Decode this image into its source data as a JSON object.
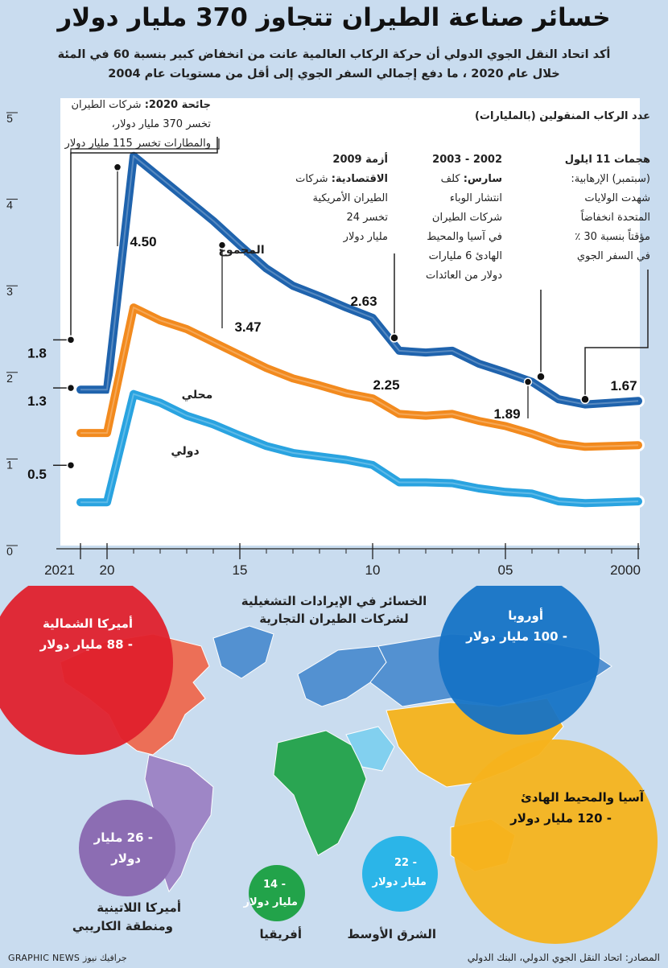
{
  "header": {
    "title": "خسائر صناعة الطيران تتجاوز 370 مليار دولار",
    "subtitle_line1": "أكد اتحاد النقل الجوي الدولي أن حركة الركاب العالمية عانت من انخفاض كبير بنسبة 60 في المئة",
    "subtitle_line2": "خلال عام 2020 ، ما دفع إجمالي السفر الجوي إلى أقل من مستويات عام 2004"
  },
  "chart_data": {
    "type": "line",
    "ylabel": "عدد الركاب المنقولين (بالمليارات)",
    "ylim": [
      0,
      5
    ],
    "yticks": [
      "0",
      "1",
      "2",
      "3",
      "4",
      "5"
    ],
    "x": [
      2000,
      2001,
      2002,
      2003,
      2004,
      2005,
      2006,
      2007,
      2008,
      2009,
      2010,
      2011,
      2012,
      2013,
      2014,
      2015,
      2016,
      2017,
      2018,
      2019,
      2020,
      2021
    ],
    "xticks": [
      {
        "value": 2000,
        "label": "2000"
      },
      {
        "value": 2005,
        "label": "05"
      },
      {
        "value": 2010,
        "label": "10"
      },
      {
        "value": 2015,
        "label": "15"
      },
      {
        "value": 2020,
        "label": "20"
      },
      {
        "value": 2021,
        "label": "2021"
      }
    ],
    "series": [
      {
        "name": "المجموع",
        "color": "#1f63ad",
        "values": [
          1.67,
          1.65,
          1.63,
          1.69,
          1.89,
          2.0,
          2.1,
          2.25,
          2.23,
          2.25,
          2.63,
          2.75,
          2.88,
          3.0,
          3.2,
          3.47,
          3.75,
          4.0,
          4.25,
          4.5,
          1.8,
          1.8
        ]
      },
      {
        "name": "محلي",
        "color": "#f28a1e",
        "values": [
          1.16,
          1.15,
          1.14,
          1.18,
          1.29,
          1.38,
          1.44,
          1.52,
          1.5,
          1.52,
          1.7,
          1.76,
          1.85,
          1.93,
          2.05,
          2.2,
          2.35,
          2.5,
          2.6,
          2.75,
          1.3,
          1.3
        ]
      },
      {
        "name": "دولي",
        "color": "#29a3e0",
        "values": [
          0.51,
          0.5,
          0.49,
          0.51,
          0.6,
          0.62,
          0.66,
          0.72,
          0.73,
          0.73,
          0.93,
          0.99,
          1.03,
          1.07,
          1.15,
          1.27,
          1.4,
          1.5,
          1.65,
          1.75,
          0.5,
          0.5
        ]
      }
    ],
    "data_labels": [
      {
        "text": "4.50"
      },
      {
        "text": "3.47"
      },
      {
        "text": "2.63"
      },
      {
        "text": "2.25"
      },
      {
        "text": "1.89"
      },
      {
        "text": "1.67"
      },
      {
        "text": "1.8"
      },
      {
        "text": "1.3"
      },
      {
        "text": "0.5"
      }
    ],
    "annotations": {
      "covid": {
        "bold": "جائحة 2020:",
        "rest": "شركات الطيران",
        "line2": "تخسر 370 مليار دولار،",
        "line3": "والمطارات تخسر 115 مليار دولار"
      },
      "crisis": {
        "line1": "أزمة 2009",
        "line2b": "الاقتصادية:",
        "line2": "شركات",
        "line3": "الطيران الأمريكية",
        "line4": "تخسر 24",
        "line5": "مليار دولار"
      },
      "sars": {
        "line1": "2002 - 2003",
        "line2b": "سارس:",
        "line2": "كلف",
        "line3": "انتشار الوباء",
        "line4": "شركات الطيران",
        "line5": "في آسيا والمحيط",
        "line6": "الهادئ 6 مليارات",
        "line7": "دولار من العائدات"
      },
      "sept11": {
        "line1": "هجمات 11 ايلول",
        "line2": "(سبتمبر) الإرهابية:",
        "line3": "شهدت الولايات",
        "line4": "المتحدة انخفاضاً",
        "line5": "مؤقتاً بنسبة 30 ٪",
        "line6": "في السفر الجوي"
      }
    }
  },
  "map": {
    "title_line1": "الخسائر في الإيرادات التشغيلية",
    "title_line2": "لشركات الطيران التجارية",
    "regions": [
      {
        "key": "north_america",
        "line1": "أميركا الشمالية",
        "line2": "- 88 مليار دولار",
        "color": "#e0202c"
      },
      {
        "key": "europe",
        "line1": "أوروبا",
        "line2": "- 100 مليار دولار",
        "color": "#1673c5"
      },
      {
        "key": "asia_pacific",
        "line1": "آسيا والمحيط الهادئ",
        "line2": "- 120 مليار دولار",
        "color": "#f6b31c"
      },
      {
        "key": "latin_america",
        "line1": "- 26 مليار",
        "line2": "دولار",
        "caption1": "أميركا اللاتينية",
        "caption2": "ومنطقة الكاريبي",
        "color": "#8c6db3"
      },
      {
        "key": "africa",
        "line1": "- 14",
        "line2": "مليار دولار",
        "caption1": "أفريقيا",
        "color": "#22a34a"
      },
      {
        "key": "middle_east",
        "line1": "- 22",
        "line2": "مليار دولار",
        "caption1": "الشرق الأوسط",
        "color": "#2bb5e8"
      }
    ]
  },
  "footer": {
    "source": "المصادر: اتحاد النقل الجوي الدولي، البنك الدولي",
    "credit": "GRAPHIC NEWS جرافيك نيوز"
  }
}
